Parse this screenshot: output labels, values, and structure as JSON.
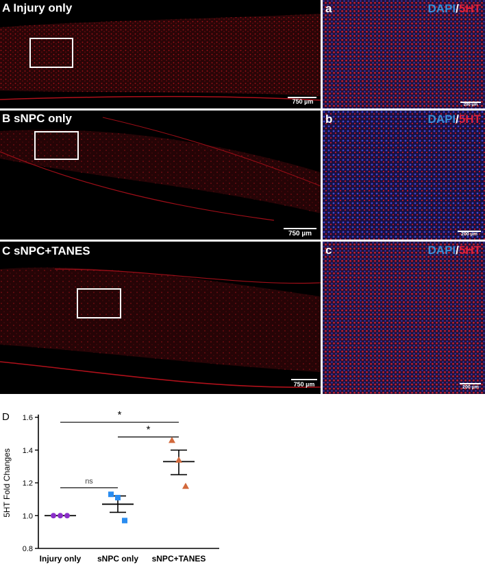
{
  "panels": [
    {
      "label": "A Injury only",
      "scale": "750 µm"
    },
    {
      "label": "B sNPC only",
      "scale": "750 µm"
    },
    {
      "label": "C sNPC+TANES",
      "scale": "750 µm"
    }
  ],
  "insets": [
    {
      "label": "a",
      "scale": "200 µm"
    },
    {
      "label": "b",
      "scale": "200 µm"
    },
    {
      "label": "c",
      "scale": "200 µm"
    }
  ],
  "stain": {
    "dapi": "DAPI",
    "slash": "/",
    "ht": "5HT"
  },
  "colors": {
    "dapi": "#3a8fd8",
    "ht": "#e0203a",
    "signal": "#c8141e",
    "background": "#000000"
  },
  "chart_data": {
    "type": "scatter",
    "panel_label": "D",
    "ylabel": "5HT Fold Changes",
    "ylim": [
      0.8,
      1.6
    ],
    "yticks": [
      "0.8",
      "1.0",
      "1.2",
      "1.4",
      "1.6"
    ],
    "categories": [
      "Injury only",
      "sNPC only",
      "sNPC+TANES"
    ],
    "series": [
      {
        "category": "Injury only",
        "color": "#8b2fc9",
        "marker": "circle",
        "points": [
          1.0,
          1.0,
          1.0
        ],
        "mean": 1.0,
        "sem_low": 1.0,
        "sem_high": 1.0
      },
      {
        "category": "sNPC only",
        "color": "#2a8cf0",
        "marker": "square",
        "points": [
          1.13,
          1.11,
          0.97
        ],
        "mean": 1.07,
        "sem_low": 1.02,
        "sem_high": 1.12
      },
      {
        "category": "sNPC+TANES",
        "color": "#d2693c",
        "marker": "triangle",
        "points": [
          1.46,
          1.34,
          1.18
        ],
        "mean": 1.33,
        "sem_low": 1.25,
        "sem_high": 1.4
      }
    ],
    "significance": [
      {
        "from": "Injury only",
        "to": "sNPC+TANES",
        "label": "*",
        "y": 1.57
      },
      {
        "from": "sNPC only",
        "to": "sNPC+TANES",
        "label": "*",
        "y": 1.48
      },
      {
        "from": "Injury only",
        "to": "sNPC only",
        "label": "ns",
        "y": 1.17
      }
    ]
  }
}
